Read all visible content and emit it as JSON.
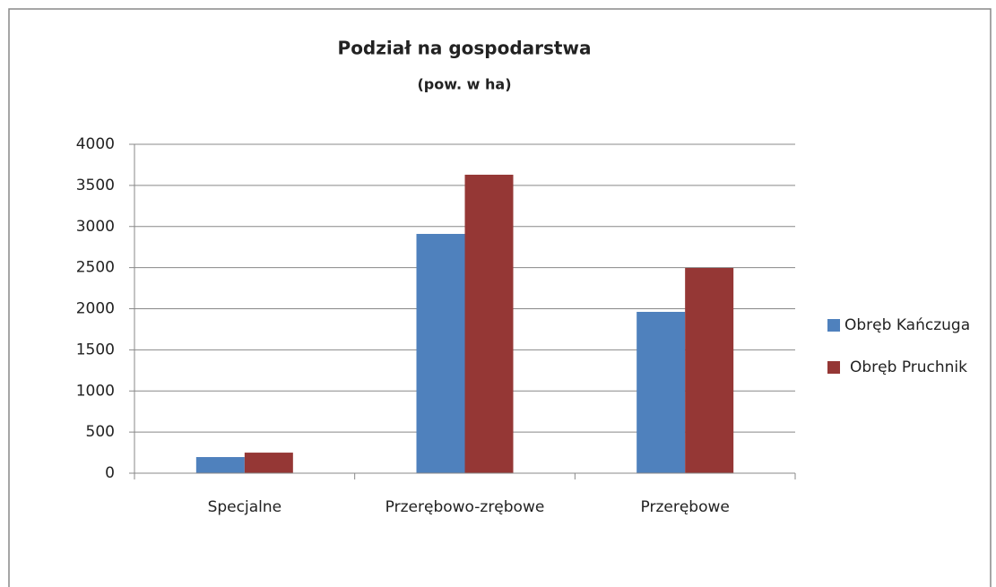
{
  "chart_data": {
    "type": "bar",
    "title": "Podział na gospodarstwa",
    "subtitle": "(pow. w ha)",
    "categories": [
      "Specjalne",
      "Przerębowo-zrębowe",
      "Przerębowe"
    ],
    "series": [
      {
        "name": "Obręb Kańczuga",
        "color": "#4f81bd",
        "values": [
          196,
          2910,
          1962
        ]
      },
      {
        "name": "Obręb Pruchnik",
        "color": "#953735",
        "values": [
          250,
          3630,
          2496
        ]
      }
    ],
    "ylim": [
      0,
      4000
    ],
    "yticks": [
      0,
      500,
      1000,
      1500,
      2000,
      2500,
      3000,
      3500,
      4000
    ],
    "grid": true,
    "legend": "right"
  }
}
